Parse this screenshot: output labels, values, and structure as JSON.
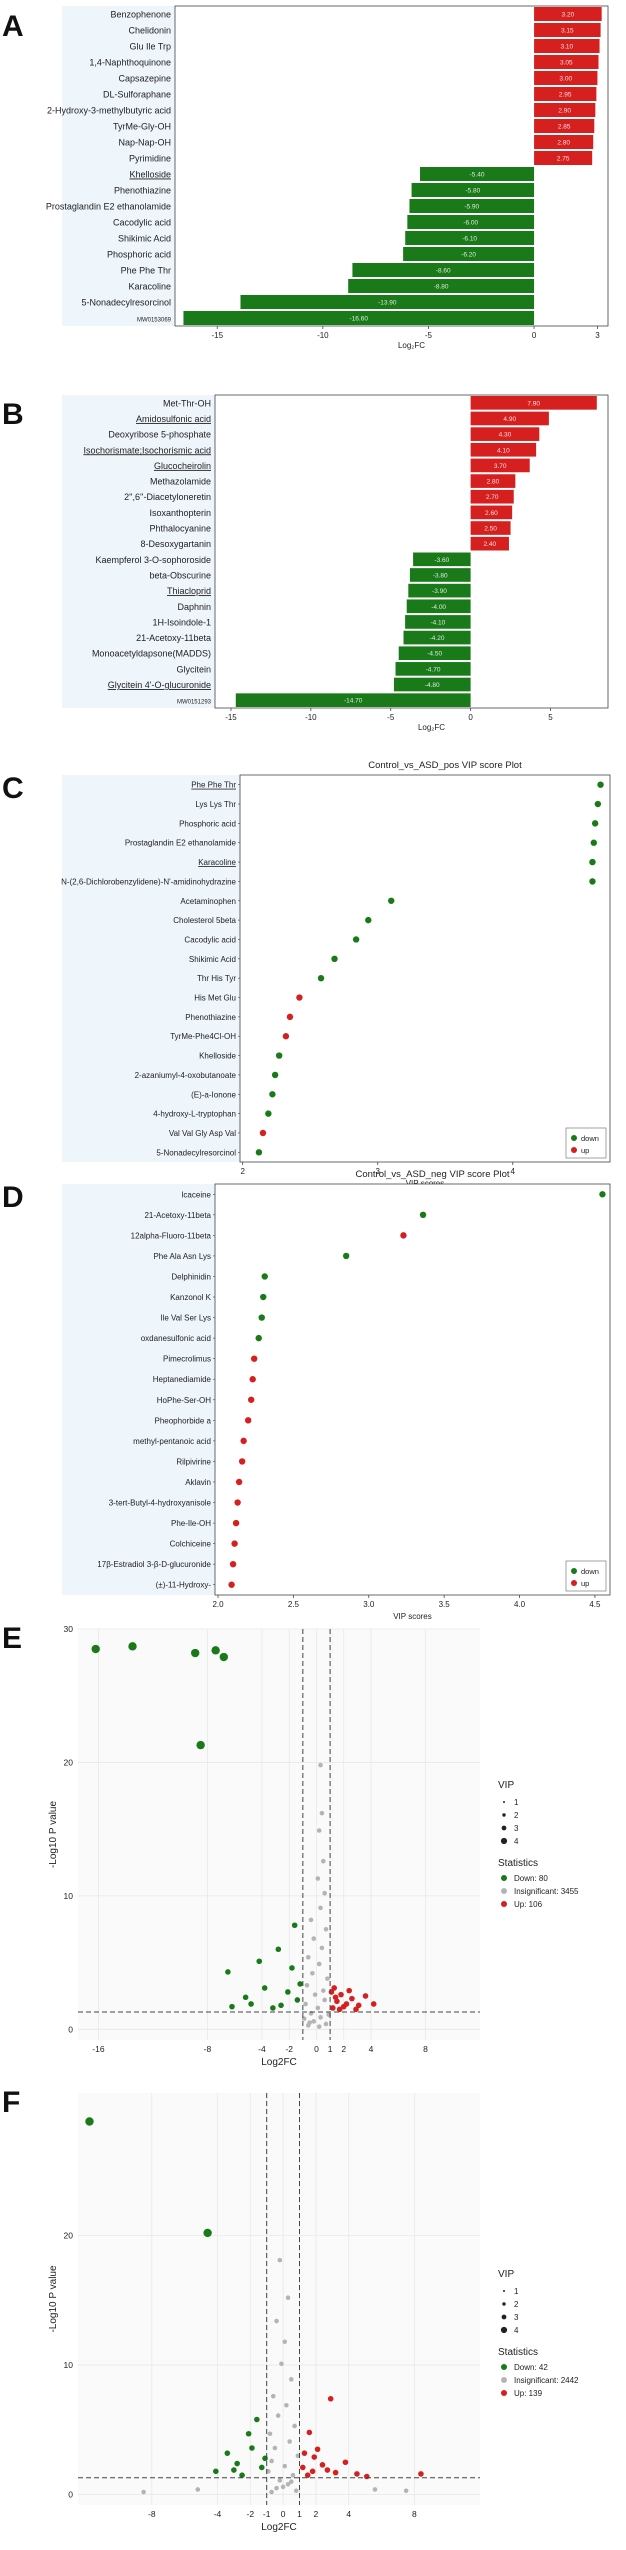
{
  "panels": {
    "A": {
      "letter": "A"
    },
    "B": {
      "letter": "B"
    },
    "C": {
      "letter": "C"
    },
    "D": {
      "letter": "D"
    },
    "E": {
      "letter": "E"
    },
    "F": {
      "letter": "F"
    }
  },
  "chart_data": [
    {
      "id": "A",
      "type": "bar",
      "orientation": "horizontal",
      "xlabel": "Log₂FC",
      "xlim": [
        -17,
        3.5
      ],
      "xticks": [
        -15,
        -10,
        -5,
        0,
        3
      ],
      "categories": [
        "Benzophenone",
        "Chelidonin",
        "Glu Ile Trp",
        "1,4-Naphthoquinone",
        "Capsazepine",
        "DL-Sulforaphane",
        "2-Hydroxy-3-methylbutyric acid",
        "TyrMe-Gly-OH",
        "Nap-Nap-OH",
        "Pyrimidine",
        "Khelloside",
        "Phenothiazine",
        "Prostaglandin E2 ethanolamide",
        "Cacodylic acid",
        "Shikimic Acid",
        "Phosphoric acid",
        "Phe Phe Thr",
        "Karacoline",
        "5-Nonadecylresorcinol",
        "MW0153069"
      ],
      "values": [
        3.2,
        3.15,
        3.1,
        3.05,
        3.0,
        2.95,
        2.9,
        2.85,
        2.8,
        2.75,
        -5.4,
        -5.8,
        -5.9,
        -6.0,
        -6.1,
        -6.2,
        -8.6,
        -8.8,
        -13.9,
        -16.6
      ],
      "value_labels": [
        "3.20",
        "3.15",
        "3.10",
        "3.05",
        "3.00",
        "2.95",
        "2.90",
        "2.85",
        "2.80",
        "2.75",
        "-5.40",
        "-5.80",
        "-5.90",
        "-6.00",
        "-6.10",
        "-6.20",
        "-8.60",
        "-8.80",
        "-13.90",
        "-16.60"
      ],
      "underlined": [
        "Khelloside"
      ]
    },
    {
      "id": "B",
      "type": "bar",
      "orientation": "horizontal",
      "xlabel": "Log₂FC",
      "xlim": [
        -16,
        8.6
      ],
      "xticks": [
        -15,
        -10,
        -5,
        0,
        5
      ],
      "categories": [
        "Met-Thr-OH",
        "Amidosulfonic acid",
        "Deoxyribose 5-phosphate",
        "Isochorismate;Isochorismic acid",
        "Glucocheirolin",
        "Methazolamide",
        "2'',6''-Diacetyloneretin",
        "Isoxanthopterin",
        "Phthalocyanine",
        "8-Desoxygartanin",
        "Kaempferol 3-O-sophoroside",
        "beta-Obscurine",
        "Thiacloprid",
        "Daphnin",
        "1H-Isoindole-1",
        "21-Acetoxy-11beta",
        "Monoacetyldapsone(MADDS)",
        "Glycitein",
        "Glycitein 4'-O-glucuronide",
        "MW0151293"
      ],
      "values": [
        7.9,
        4.9,
        4.3,
        4.1,
        3.7,
        2.8,
        2.7,
        2.6,
        2.5,
        2.4,
        -3.6,
        -3.8,
        -3.9,
        -4.0,
        -4.1,
        -4.2,
        -4.5,
        -4.7,
        -4.8,
        -14.7
      ],
      "value_labels": [
        "7.90",
        "4.90",
        "4.30",
        "4.10",
        "3.70",
        "2.80",
        "2.70",
        "2.60",
        "2.50",
        "2.40",
        "-3.60",
        "-3.80",
        "-3.90",
        "-4.00",
        "-4.10",
        "-4.20",
        "-4.50",
        "-4.70",
        "-4.80",
        "-14.70"
      ],
      "underlined": [
        "Amidosulfonic acid",
        "Isochorismate;Isochorismic acid",
        "Glucocheirolin",
        "Thiacloprid",
        "Glycitein 4'-O-glucuronide"
      ]
    },
    {
      "id": "C",
      "type": "scatter",
      "title": "Control_vs_ASD_pos VIP score Plot",
      "xlabel": "VIP scores",
      "xlim": [
        1.98,
        4.72
      ],
      "xticks": [
        2,
        3,
        4
      ],
      "categories": [
        "Phe Phe Thr",
        "Lys Lys Thr",
        "Phosphoric acid",
        "Prostaglandin E2 ethanolamide",
        "Karacoline",
        "N-(2,6-Dichlorobenzylidene)-N'-amidinohydrazine",
        "Acetaminophen",
        "Cholesterol 5beta",
        "Cacodylic acid",
        "Shikimic Acid",
        "Thr His Tyr",
        "His Met Glu",
        "Phenothiazine",
        "TyrMe-Phe4Cl-OH",
        "Khelloside",
        "2-azaniumyl-4-oxobutanoate",
        "(E)-a-Ionone",
        "4-hydroxy-L-tryptophan",
        "Val Val Gly Asp Val",
        "5-Nonadecylresorcinol"
      ],
      "values": [
        4.65,
        4.63,
        4.61,
        4.6,
        4.59,
        4.59,
        3.1,
        2.93,
        2.84,
        2.68,
        2.58,
        2.42,
        2.35,
        2.32,
        2.27,
        2.24,
        2.22,
        2.19,
        2.15,
        2.12
      ],
      "direction": [
        "down",
        "down",
        "down",
        "down",
        "down",
        "down",
        "down",
        "down",
        "down",
        "down",
        "down",
        "up",
        "up",
        "up",
        "down",
        "down",
        "down",
        "down",
        "up",
        "down"
      ],
      "underlined": [
        "Phe Phe Thr",
        "Karacoline"
      ],
      "legend": [
        {
          "label": "down",
          "color": "#1a7a1a"
        },
        {
          "label": "up",
          "color": "#d62020"
        }
      ]
    },
    {
      "id": "D",
      "type": "scatter",
      "title": "Control_vs_ASD_neg VIP score Plot",
      "xlabel": "VIP scores",
      "xlim": [
        1.98,
        4.6
      ],
      "xticks": [
        2.0,
        2.5,
        3.0,
        3.5,
        4.0,
        4.5
      ],
      "categories": [
        "Icaceine",
        "21-Acetoxy-11beta",
        "12alpha-Fluoro-11beta",
        "Phe Ala Asn Lys",
        "Delphinidin",
        "Kanzonol K",
        "Ile Val Ser Lys",
        "oxdanesulfonic acid",
        "Pimecrolimus",
        "Heptanediamide",
        "HoPhe-Ser-OH",
        "Pheophorbide a",
        "methyl-pentanoic acid",
        "Rilpivirine",
        "Aklavin",
        "3-tert-Butyl-4-hydroxyanisole",
        "Phe-Ile-OH",
        "Colchiceine",
        "17β-Estradiol 3-β-D-glucuronide",
        "(±)-11-Hydroxy-"
      ],
      "values": [
        4.55,
        3.36,
        3.23,
        2.85,
        2.31,
        2.3,
        2.29,
        2.27,
        2.24,
        2.23,
        2.22,
        2.2,
        2.17,
        2.16,
        2.14,
        2.13,
        2.12,
        2.11,
        2.1,
        2.09
      ],
      "direction": [
        "down",
        "down",
        "up",
        "down",
        "down",
        "down",
        "down",
        "down",
        "up",
        "up",
        "up",
        "up",
        "up",
        "up",
        "up",
        "up",
        "up",
        "up",
        "up",
        "up"
      ],
      "legend": [
        {
          "label": "down",
          "color": "#1a7a1a"
        },
        {
          "label": "up",
          "color": "#d62020"
        }
      ]
    },
    {
      "id": "E",
      "type": "scatter",
      "subtype": "volcano",
      "xlabel": "Log2FC",
      "ylabel": "-Log10 P value",
      "xlim": [
        -17.5,
        12
      ],
      "ylim": [
        -0.8,
        30
      ],
      "xticks": [
        -16,
        -8,
        -4,
        -2,
        0,
        1,
        2,
        4,
        8
      ],
      "yticks": [
        0,
        10,
        20,
        30
      ],
      "thresholds": {
        "x": [
          -1,
          1
        ],
        "y": 1.3
      },
      "down_points": [
        [
          -16.2,
          28.5
        ],
        [
          -13.5,
          28.7
        ],
        [
          -8.9,
          28.2
        ],
        [
          -7.4,
          28.4
        ],
        [
          -6.8,
          27.9
        ],
        [
          -8.5,
          21.3
        ],
        [
          -6.5,
          4.3
        ],
        [
          -4.2,
          5.1
        ],
        [
          -2.8,
          6.0
        ],
        [
          -1.6,
          7.8
        ],
        [
          -3.8,
          3.1
        ],
        [
          -5.2,
          2.4
        ],
        [
          -2.1,
          2.8
        ],
        [
          -1.4,
          2.2
        ],
        [
          -2.6,
          1.8
        ],
        [
          -1.8,
          4.6
        ],
        [
          -3.2,
          1.6
        ],
        [
          -4.8,
          1.9
        ],
        [
          -1.2,
          3.4
        ],
        [
          -6.2,
          1.7
        ]
      ],
      "up_points": [
        [
          1.2,
          1.6
        ],
        [
          1.5,
          2.1
        ],
        [
          1.8,
          2.6
        ],
        [
          2.2,
          1.9
        ],
        [
          2.6,
          2.3
        ],
        [
          3.1,
          1.8
        ],
        [
          3.6,
          2.5
        ],
        [
          1.3,
          3.1
        ],
        [
          1.7,
          1.5
        ],
        [
          2.9,
          1.5
        ],
        [
          4.2,
          1.9
        ],
        [
          1.4,
          2.4
        ],
        [
          2.0,
          1.7
        ],
        [
          1.1,
          2.8
        ],
        [
          2.4,
          2.9
        ]
      ],
      "insig_points": [
        [
          0.3,
          19.8
        ],
        [
          0.4,
          16.2
        ],
        [
          0.2,
          14.9
        ],
        [
          0.5,
          12.6
        ],
        [
          0.1,
          11.3
        ],
        [
          0.6,
          10.2
        ],
        [
          0.3,
          9.1
        ],
        [
          -0.4,
          8.2
        ],
        [
          0.7,
          7.5
        ],
        [
          -0.2,
          6.8
        ],
        [
          0.4,
          6.1
        ],
        [
          -0.6,
          5.4
        ],
        [
          0.2,
          4.9
        ],
        [
          -0.3,
          4.2
        ],
        [
          0.8,
          3.8
        ],
        [
          -0.7,
          3.3
        ],
        [
          0.5,
          2.9
        ],
        [
          -0.1,
          2.6
        ],
        [
          0.6,
          2.2
        ],
        [
          -0.8,
          1.9
        ],
        [
          0.1,
          1.6
        ],
        [
          -0.4,
          1.2
        ],
        [
          0.3,
          0.9
        ],
        [
          -0.2,
          0.6
        ],
        [
          0.7,
          0.4
        ],
        [
          -0.6,
          0.3
        ],
        [
          0.2,
          0.2
        ],
        [
          -0.9,
          0.8
        ],
        [
          0.9,
          1.1
        ],
        [
          -0.5,
          0.5
        ]
      ],
      "legend": {
        "vip_title": "VIP",
        "vip_sizes": [
          "1",
          "2",
          "3",
          "4"
        ],
        "stats_title": "Statistics",
        "down": "Down: 80",
        "insignificant": "Insignificant: 3455",
        "up": "Up: 106"
      }
    },
    {
      "id": "F",
      "type": "scatter",
      "subtype": "volcano",
      "xlabel": "Log2FC",
      "ylabel": "-Log10 P value",
      "xlim": [
        -12.5,
        12
      ],
      "ylim": [
        -0.8,
        31
      ],
      "xticks": [
        -8,
        -4,
        -2,
        -1,
        0,
        1,
        2,
        4,
        8
      ],
      "yticks": [
        0,
        10,
        20
      ],
      "thresholds": {
        "x": [
          -1,
          1
        ],
        "y": 1.3
      },
      "down_points": [
        [
          -11.8,
          28.8
        ],
        [
          -4.6,
          20.2
        ],
        [
          -2.1,
          4.7
        ],
        [
          -3.4,
          3.2
        ],
        [
          -1.6,
          5.8
        ],
        [
          -2.8,
          2.4
        ],
        [
          -1.3,
          2.1
        ],
        [
          -4.1,
          1.8
        ],
        [
          -1.9,
          3.6
        ],
        [
          -2.5,
          1.5
        ],
        [
          -1.1,
          2.8
        ],
        [
          -3.0,
          1.9
        ]
      ],
      "up_points": [
        [
          2.9,
          7.4
        ],
        [
          1.6,
          4.8
        ],
        [
          1.2,
          2.1
        ],
        [
          1.9,
          2.9
        ],
        [
          2.4,
          2.3
        ],
        [
          3.2,
          1.7
        ],
        [
          1.5,
          1.5
        ],
        [
          2.1,
          3.5
        ],
        [
          4.5,
          1.6
        ],
        [
          1.3,
          3.2
        ],
        [
          2.7,
          1.9
        ],
        [
          3.8,
          2.5
        ],
        [
          1.8,
          1.8
        ],
        [
          5.1,
          1.4
        ],
        [
          8.4,
          1.6
        ]
      ],
      "insig_points": [
        [
          -0.2,
          18.1
        ],
        [
          0.3,
          15.2
        ],
        [
          -0.4,
          13.4
        ],
        [
          0.1,
          11.8
        ],
        [
          -0.1,
          10.1
        ],
        [
          0.5,
          8.9
        ],
        [
          -0.6,
          7.6
        ],
        [
          0.2,
          6.9
        ],
        [
          -0.3,
          6.1
        ],
        [
          0.7,
          5.3
        ],
        [
          -0.8,
          4.7
        ],
        [
          0.4,
          4.1
        ],
        [
          -0.5,
          3.6
        ],
        [
          0.9,
          3.0
        ],
        [
          -0.7,
          2.6
        ],
        [
          0.1,
          2.2
        ],
        [
          -0.9,
          1.8
        ],
        [
          0.6,
          1.5
        ],
        [
          -0.2,
          1.1
        ],
        [
          0.3,
          0.8
        ],
        [
          -0.4,
          0.5
        ],
        [
          0.8,
          0.3
        ],
        [
          -0.7,
          0.2
        ],
        [
          0.0,
          0.6
        ],
        [
          0.5,
          1.0
        ],
        [
          -8.5,
          0.2
        ],
        [
          7.5,
          0.3
        ],
        [
          -5.2,
          0.4
        ],
        [
          5.6,
          0.4
        ]
      ],
      "legend": {
        "vip_title": "VIP",
        "vip_sizes": [
          "1",
          "2",
          "3",
          "4"
        ],
        "stats_title": "Statistics",
        "down": "Down: 42",
        "insignificant": "Insignificant: 2442",
        "up": "Up: 139"
      }
    }
  ]
}
